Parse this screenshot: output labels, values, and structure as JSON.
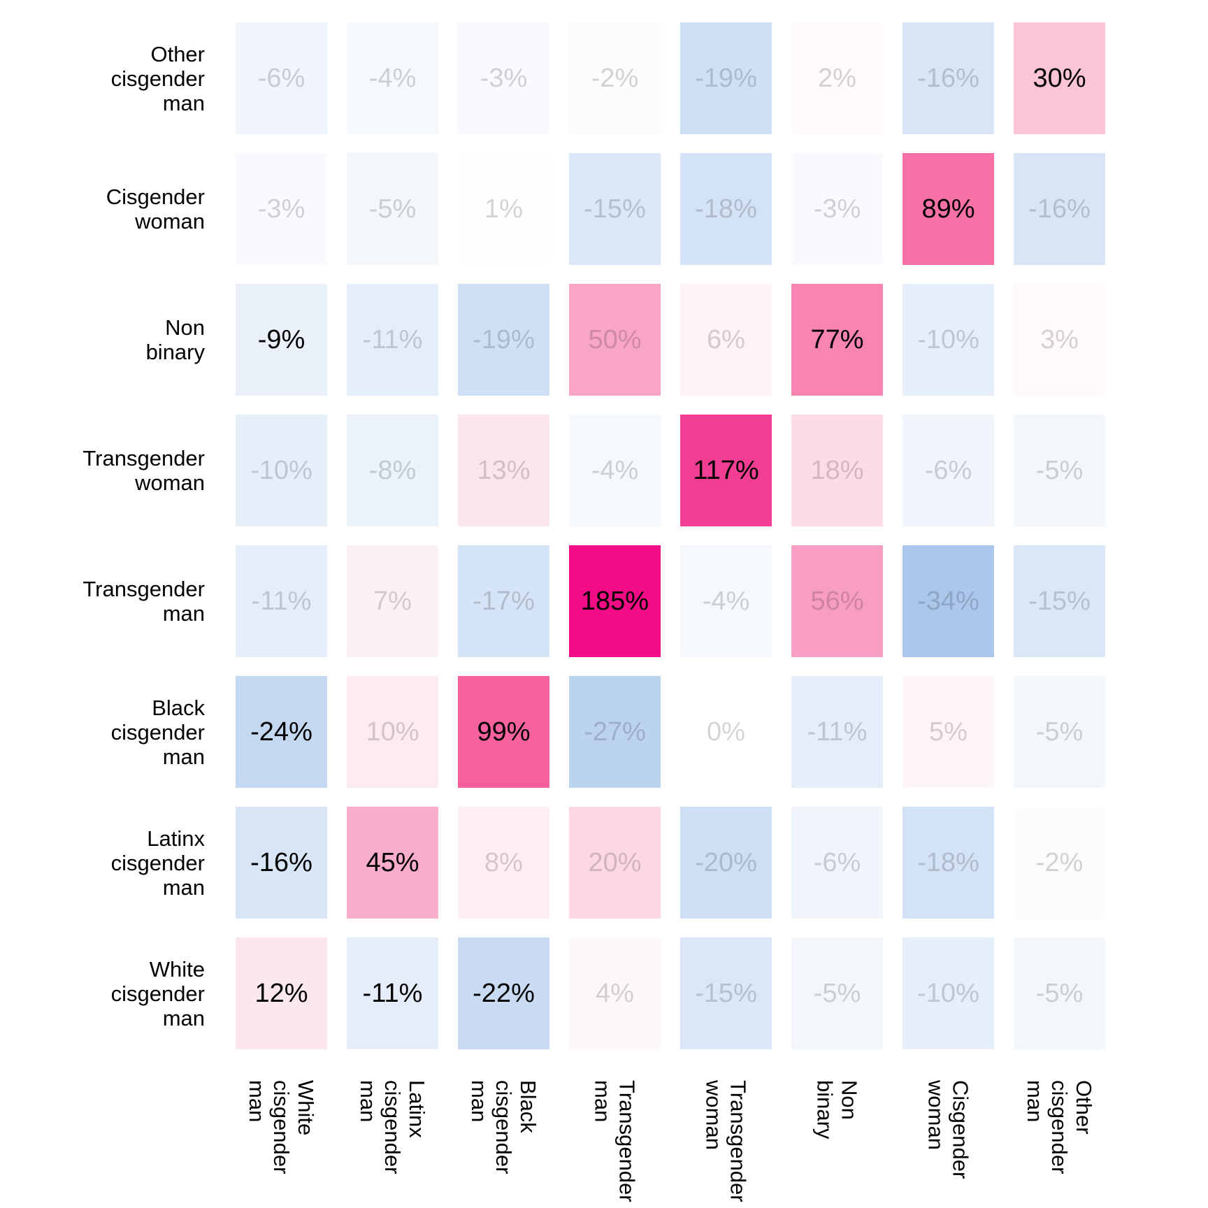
{
  "chart_data": {
    "type": "heatmap",
    "title": "",
    "xlabel": "",
    "ylabel": "",
    "legend": "none",
    "grid": "off",
    "value_suffix": "%",
    "x_categories": [
      "White cisgender man",
      "Latinx cisgender man",
      "Black cisgender man",
      "Transgender man",
      "Transgender woman",
      "Non binary",
      "Cisgender woman",
      "Other cisgender man"
    ],
    "x_category_lines": [
      [
        "White",
        "cisgender",
        "man"
      ],
      [
        "Latinx",
        "cisgender",
        "man"
      ],
      [
        "Black",
        "cisgender",
        "man"
      ],
      [
        "Transgender",
        "man"
      ],
      [
        "Transgender",
        "woman"
      ],
      [
        "Non",
        "binary"
      ],
      [
        "Cisgender",
        "woman"
      ],
      [
        "Other",
        "cisgender",
        "man"
      ]
    ],
    "y_categories": [
      "Other cisgender man",
      "Cisgender woman",
      "Non binary",
      "Transgender woman",
      "Transgender man",
      "Black cisgender man",
      "Latinx cisgender man",
      "White cisgender man"
    ],
    "y_category_lines": [
      [
        "Other",
        "cisgender",
        "man"
      ],
      [
        "Cisgender",
        "woman"
      ],
      [
        "Non",
        "binary"
      ],
      [
        "Transgender",
        "woman"
      ],
      [
        "Transgender",
        "man"
      ],
      [
        "Black",
        "cisgender",
        "man"
      ],
      [
        "Latinx",
        "cisgender",
        "man"
      ],
      [
        "White",
        "cisgender",
        "man"
      ]
    ],
    "values": [
      [
        -6,
        -4,
        -3,
        -2,
        -19,
        2,
        -16,
        30
      ],
      [
        -3,
        -5,
        1,
        -15,
        -18,
        -3,
        89,
        -16
      ],
      [
        -9,
        -11,
        -19,
        50,
        6,
        77,
        -10,
        3
      ],
      [
        -10,
        -8,
        13,
        -4,
        117,
        18,
        -6,
        -5
      ],
      [
        -11,
        7,
        -17,
        185,
        -4,
        56,
        -34,
        -15
      ],
      [
        -24,
        10,
        99,
        -27,
        0,
        -11,
        5,
        -5
      ],
      [
        -16,
        45,
        8,
        20,
        -20,
        -6,
        -18,
        -2
      ],
      [
        12,
        -11,
        -22,
        4,
        -15,
        -5,
        -10,
        -5
      ]
    ],
    "emphasized": [
      [
        0,
        0,
        0,
        0,
        0,
        0,
        0,
        1
      ],
      [
        0,
        0,
        0,
        0,
        0,
        0,
        1,
        0
      ],
      [
        1,
        0,
        0,
        0,
        0,
        1,
        0,
        0
      ],
      [
        0,
        0,
        0,
        0,
        1,
        0,
        0,
        0
      ],
      [
        0,
        0,
        0,
        1,
        0,
        0,
        0,
        0
      ],
      [
        1,
        0,
        1,
        0,
        0,
        0,
        0,
        0
      ],
      [
        1,
        1,
        0,
        0,
        0,
        0,
        0,
        0
      ],
      [
        1,
        1,
        1,
        0,
        0,
        0,
        0,
        0
      ]
    ],
    "colors": {
      "background": "#ffffff",
      "emphasized_text": "#000000",
      "muted_text": "rgba(0,0,0,0.17)",
      "scale_anchors": [
        [
          -34,
          "#ABC8EC"
        ],
        [
          0,
          "#FFFFFF"
        ],
        [
          30,
          "#FBC4D8"
        ],
        [
          50,
          "#F8A5C7"
        ],
        [
          77,
          "#F884B2"
        ],
        [
          99,
          "#F7619E"
        ],
        [
          117,
          "#F23E92"
        ],
        [
          185,
          "#F20D86"
        ]
      ]
    }
  }
}
